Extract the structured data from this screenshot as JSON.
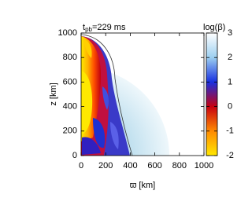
{
  "chart_data": {
    "type": "heatmap",
    "title": {
      "main": "t",
      "sub": "pb",
      "rest": "=229 ms"
    },
    "xlabel": "ϖ [km]",
    "ylabel": "z [km]",
    "xlim": [
      0,
      1000
    ],
    "ylim": [
      0,
      1000
    ],
    "xticks": [
      0,
      200,
      400,
      600,
      800,
      1000
    ],
    "yticks": [
      0,
      200,
      400,
      600,
      800,
      1000
    ],
    "colorbar": {
      "label": "log(β)",
      "lim": [
        -2,
        3
      ],
      "ticks": [
        -2,
        -1,
        0,
        1,
        2,
        3
      ],
      "colors": [
        "#ffe800",
        "#ff8a00",
        "#c80010",
        "#1830e0",
        "#9ccff0",
        "#ffffff"
      ]
    }
  }
}
